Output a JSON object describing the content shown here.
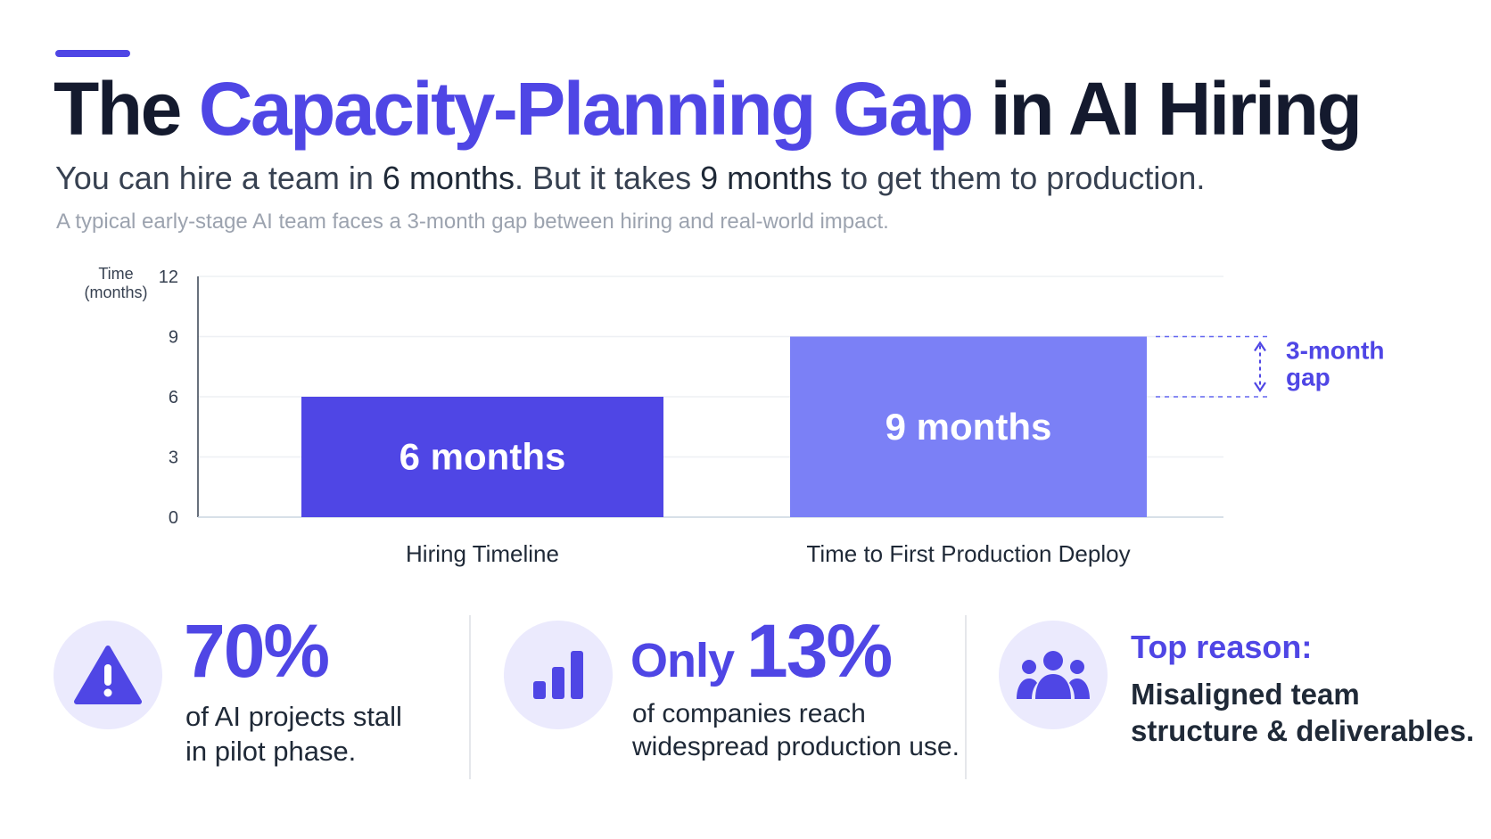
{
  "header": {
    "title_part1": "The ",
    "title_highlight": "Capacity-Planning Gap",
    "title_part2": " in AI Hiring",
    "subtitle_part1": "You can hire a team in ",
    "subtitle_bold1": "6 months",
    "subtitle_part2": ". But it takes ",
    "subtitle_bold2": "9 months",
    "subtitle_part3": " to get them to production.",
    "caption": "A typical early-stage AI team faces a 3-month gap between hiring and real-world impact."
  },
  "chart_data": {
    "type": "bar",
    "categories": [
      "Hiring Timeline",
      "Time to First Production Deploy"
    ],
    "values": [
      6,
      9
    ],
    "data_labels": [
      "6 months",
      "9 months"
    ],
    "ylabel_lines": [
      "Time",
      "(months)"
    ],
    "yticks": [
      0,
      3,
      6,
      9,
      12
    ],
    "ylim": [
      0,
      12
    ],
    "grid": true,
    "annotation": {
      "lines": [
        "3-month",
        "gap"
      ],
      "from": 6,
      "to": 9
    },
    "colors": [
      "#4f46e5",
      "#7b80f6"
    ]
  },
  "stats": [
    {
      "icon": "warning-icon",
      "prefix": "",
      "big": "70%",
      "text_line1": "of AI projects stall",
      "text_line2": "in pilot phase."
    },
    {
      "icon": "bar-chart-icon",
      "prefix": "Only ",
      "big": "13%",
      "text_line1": "of companies reach",
      "text_line2": "widespread production use."
    },
    {
      "icon": "team-icon",
      "heading": "Top reason:",
      "text_line1": "Misaligned team",
      "text_line2": "structure & deliverables."
    }
  ],
  "colors": {
    "accent": "#4f46e5",
    "accent_light": "#7b80f6",
    "icon_bg": "#ebeafd",
    "text_dark": "#141a2e"
  }
}
